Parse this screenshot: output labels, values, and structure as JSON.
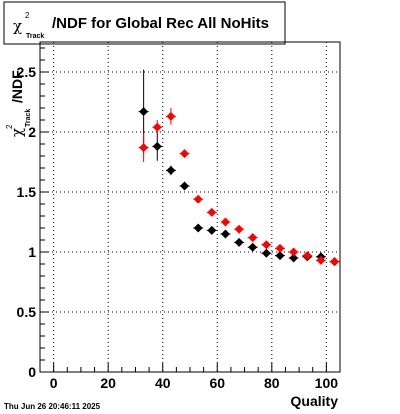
{
  "chart_data": {
    "type": "scatter",
    "title": {
      "symbol": "χ",
      "superscript": "2",
      "subscript": "Track",
      "text": "/NDF for Global Rec All NoHits"
    },
    "xlabel": "Quality",
    "ylabel": {
      "symbol": "χ",
      "superscript": "2",
      "subscript": "Track",
      "text": "/NDF"
    },
    "xlim": [
      -5,
      105
    ],
    "ylim": [
      0,
      2.75
    ],
    "x_ticks": [
      0,
      20,
      40,
      60,
      80,
      100
    ],
    "y_ticks": [
      0,
      0.5,
      1,
      1.5,
      2,
      2.5
    ],
    "y_tick_labels": [
      "0",
      "0.5",
      "1",
      "1.5",
      "2",
      "2.5"
    ],
    "grid": true,
    "series": [
      {
        "color": "#000000",
        "points": [
          {
            "x": 33,
            "y": 2.17,
            "yerr": 0.35
          },
          {
            "x": 38,
            "y": 1.88,
            "yerr": 0.12
          },
          {
            "x": 43,
            "y": 1.68,
            "yerr": 0.04
          },
          {
            "x": 48,
            "y": 1.55,
            "yerr": 0.03
          },
          {
            "x": 53,
            "y": 1.2,
            "yerr": 0.02
          },
          {
            "x": 58,
            "y": 1.18,
            "yerr": 0.02
          },
          {
            "x": 63,
            "y": 1.15,
            "yerr": 0.02
          },
          {
            "x": 68,
            "y": 1.08,
            "yerr": 0.02
          },
          {
            "x": 73,
            "y": 1.04,
            "yerr": 0.02
          },
          {
            "x": 78,
            "y": 0.99,
            "yerr": 0.02
          },
          {
            "x": 83,
            "y": 0.97,
            "yerr": 0.02
          },
          {
            "x": 88,
            "y": 0.95,
            "yerr": 0.02
          },
          {
            "x": 93,
            "y": 0.96,
            "yerr": 0.02
          },
          {
            "x": 98,
            "y": 0.96,
            "yerr": 0.02
          },
          {
            "x": 103,
            "y": 0.92,
            "yerr": 0.02
          }
        ]
      },
      {
        "color": "#ff0000",
        "points": [
          {
            "x": 33,
            "y": 1.87,
            "yerr": 0.12
          },
          {
            "x": 38,
            "y": 2.04,
            "yerr": 0.06
          },
          {
            "x": 43,
            "y": 2.13,
            "yerr": 0.07
          },
          {
            "x": 48,
            "y": 1.82,
            "yerr": 0.03
          },
          {
            "x": 53,
            "y": 1.44,
            "yerr": 0.02
          },
          {
            "x": 58,
            "y": 1.33,
            "yerr": 0.02
          },
          {
            "x": 63,
            "y": 1.25,
            "yerr": 0.02
          },
          {
            "x": 68,
            "y": 1.19,
            "yerr": 0.02
          },
          {
            "x": 73,
            "y": 1.12,
            "yerr": 0.02
          },
          {
            "x": 78,
            "y": 1.06,
            "yerr": 0.02
          },
          {
            "x": 83,
            "y": 1.03,
            "yerr": 0.02
          },
          {
            "x": 88,
            "y": 1.0,
            "yerr": 0.02
          },
          {
            "x": 93,
            "y": 0.97,
            "yerr": 0.02
          },
          {
            "x": 98,
            "y": 0.93,
            "yerr": 0.02
          },
          {
            "x": 103,
            "y": 0.92,
            "yerr": 0.02
          }
        ]
      }
    ]
  },
  "footer": {
    "timestamp": "Thu Jun 26 20:46:11 2025"
  }
}
